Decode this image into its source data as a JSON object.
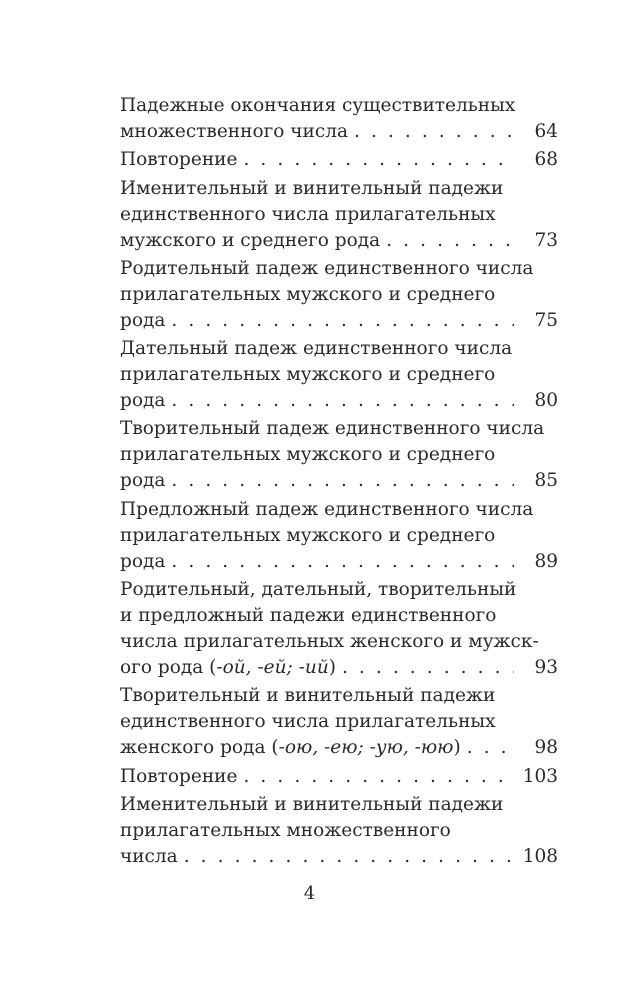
{
  "toc": [
    {
      "lines": [
        "Падежные окончания существительных"
      ],
      "last": "множественного числа",
      "italic": "",
      "after": "",
      "page": "64"
    },
    {
      "lines": [],
      "last": "Повторение",
      "italic": "",
      "after": "",
      "page": "68"
    },
    {
      "lines": [
        "Именительный и винительный падежи",
        "единственного числа прилагательных"
      ],
      "last": "мужского и среднего рода",
      "italic": "",
      "after": "",
      "page": "73"
    },
    {
      "lines": [
        "Родительный падеж единственного числа",
        "прилагательных мужского и среднего"
      ],
      "last": "рода",
      "italic": "",
      "after": "",
      "page": "75"
    },
    {
      "lines": [
        "Дательный падеж единственного числа",
        "прилагательных мужского и среднего"
      ],
      "last": "рода",
      "italic": "",
      "after": "",
      "page": "80"
    },
    {
      "lines": [
        "Творительный падеж единственного числа",
        "прилагательных мужского и среднего"
      ],
      "last": "рода",
      "italic": "",
      "after": "",
      "page": "85"
    },
    {
      "lines": [
        "Предложный падеж единственного числа",
        "прилагательных мужского и среднего"
      ],
      "last": "рода",
      "italic": "",
      "after": "",
      "page": "89"
    },
    {
      "lines": [
        "Родительный, дательный, творительный",
        "и предложный падежи единственного",
        "числа прилагательных женского и мужск-"
      ],
      "last": "ого рода (",
      "italic": "-ой, -ей; -ий",
      "after": ")",
      "page": "93"
    },
    {
      "lines": [
        "Творительный и винительный падежи",
        "единственного числа прилагательных"
      ],
      "last": "женского рода (",
      "italic": "-ою, -ею; -ую, -юю",
      "after": ")",
      "page": "98"
    },
    {
      "lines": [],
      "last": "Повторение",
      "italic": "",
      "after": "",
      "page": "103"
    },
    {
      "lines": [
        "Именительный и винительный падежи",
        "прилагательных множественного"
      ],
      "last": "числа",
      "italic": "",
      "after": "",
      "page": "108"
    }
  ],
  "page_number": "4"
}
